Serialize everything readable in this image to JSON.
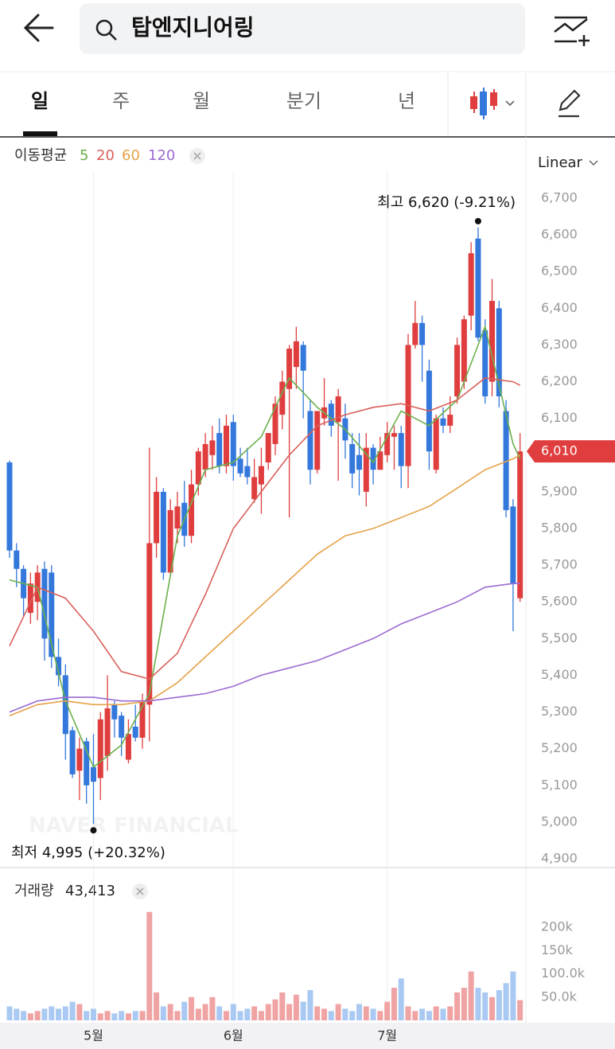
{
  "header": {
    "search": "탑엔지니어링"
  },
  "tabs": [
    "일",
    "주",
    "월",
    "분기",
    "년"
  ],
  "chart_data": {
    "type": "candlestick",
    "ma_title": "이동평균",
    "scale_label": "Linear",
    "watermark": "NAVER FINANCIAL",
    "ylim": [
      4900,
      6700
    ],
    "yticks": [
      {
        "value": 4900,
        "label": "4,900"
      },
      {
        "value": 5000,
        "label": "5,000"
      },
      {
        "value": 5100,
        "label": "5,100"
      },
      {
        "value": 5200,
        "label": "5,200"
      },
      {
        "value": 5300,
        "label": "5,300"
      },
      {
        "value": 5400,
        "label": "5,400"
      },
      {
        "value": 5500,
        "label": "5,500"
      },
      {
        "value": 5600,
        "label": "5,600"
      },
      {
        "value": 5700,
        "label": "5,700"
      },
      {
        "value": 5800,
        "label": "5,800"
      },
      {
        "value": 5900,
        "label": "5,900"
      },
      {
        "value": 6000,
        "label": "6,000"
      },
      {
        "value": 6100,
        "label": "6,100"
      },
      {
        "value": 6200,
        "label": "6,200"
      },
      {
        "value": 6300,
        "label": "6,300"
      },
      {
        "value": 6400,
        "label": "6,400"
      },
      {
        "value": 6500,
        "label": "6,500"
      },
      {
        "value": 6600,
        "label": "6,600"
      },
      {
        "value": 6700,
        "label": "6,700"
      }
    ],
    "x_labels": [
      {
        "value": 12,
        "label": "5월"
      },
      {
        "value": 32,
        "label": "6월"
      },
      {
        "value": 54,
        "label": "7월"
      }
    ],
    "up_color": "#e03e3e",
    "down_color": "#3478dc",
    "up_volume_color": "#f0a3a3",
    "down_volume_color": "#a9c9f2",
    "candles": [
      [
        5980,
        5985,
        5720,
        5740
      ],
      [
        5740,
        5760,
        5640,
        5690
      ],
      [
        5690,
        5700,
        5560,
        5610
      ],
      [
        5570,
        5680,
        5540,
        5650
      ],
      [
        5600,
        5700,
        5550,
        5680
      ],
      [
        5690,
        5710,
        5440,
        5500
      ],
      [
        5680,
        5700,
        5420,
        5450
      ],
      [
        5450,
        5500,
        5370,
        5400
      ],
      [
        5400,
        5430,
        5170,
        5240
      ],
      [
        5250,
        5260,
        5120,
        5130
      ],
      [
        5140,
        5230,
        5060,
        5200
      ],
      [
        5220,
        5230,
        5050,
        5100
      ],
      [
        5150,
        5240,
        4995,
        5110
      ],
      [
        5120,
        5300,
        5060,
        5280
      ],
      [
        5180,
        5400,
        5140,
        5310
      ],
      [
        5320,
        5330,
        5230,
        5280
      ],
      [
        5290,
        5300,
        5180,
        5230
      ],
      [
        5170,
        5280,
        5160,
        5240
      ],
      [
        5260,
        5320,
        5220,
        5230
      ],
      [
        5230,
        5350,
        5200,
        5330
      ],
      [
        5320,
        6020,
        5220,
        5760
      ],
      [
        5760,
        5940,
        5720,
        5900
      ],
      [
        5900,
        5910,
        5660,
        5680
      ],
      [
        5680,
        5880,
        5670,
        5850
      ],
      [
        5800,
        5900,
        5760,
        5860
      ],
      [
        5870,
        5930,
        5750,
        5780
      ],
      [
        5780,
        5960,
        5760,
        5920
      ],
      [
        5920,
        6020,
        5890,
        6010
      ],
      [
        5960,
        6060,
        5940,
        6030
      ],
      [
        6000,
        6080,
        5960,
        6040
      ],
      [
        6060,
        6100,
        5950,
        5970
      ],
      [
        5970,
        6110,
        5950,
        6080
      ],
      [
        6090,
        6110,
        5930,
        5970
      ],
      [
        5990,
        6020,
        5940,
        5950
      ],
      [
        5970,
        6020,
        5920,
        5940
      ],
      [
        5880,
        5990,
        5870,
        5940
      ],
      [
        5920,
        6020,
        5840,
        5970
      ],
      [
        5980,
        6060,
        5960,
        6060
      ],
      [
        6030,
        6160,
        6000,
        6140
      ],
      [
        6110,
        6230,
        6070,
        6200
      ],
      [
        6180,
        6300,
        5830,
        6290
      ],
      [
        6240,
        6350,
        6180,
        6310
      ],
      [
        6300,
        6310,
        6100,
        6230
      ],
      [
        6120,
        6150,
        5920,
        5960
      ],
      [
        5960,
        6120,
        5950,
        6120
      ],
      [
        6100,
        6210,
        6080,
        6130
      ],
      [
        6140,
        6150,
        6050,
        6080
      ],
      [
        6090,
        6180,
        5930,
        6160
      ],
      [
        6100,
        6140,
        5990,
        6040
      ],
      [
        6030,
        6060,
        5910,
        5950
      ],
      [
        6000,
        6060,
        5890,
        5960
      ],
      [
        5900,
        6060,
        5860,
        6020
      ],
      [
        6020,
        6030,
        5920,
        5960
      ],
      [
        5960,
        6050,
        5960,
        6010
      ],
      [
        6000,
        6090,
        5980,
        6060
      ],
      [
        6050,
        6080,
        5960,
        6060
      ],
      [
        6060,
        6080,
        5910,
        5970
      ],
      [
        5970,
        6330,
        5910,
        6300
      ],
      [
        6300,
        6420,
        6290,
        6360
      ],
      [
        6360,
        6380,
        6200,
        6300
      ],
      [
        6230,
        6260,
        5960,
        6010
      ],
      [
        5960,
        6110,
        5950,
        6100
      ],
      [
        6100,
        6130,
        6060,
        6080
      ],
      [
        6080,
        6160,
        6060,
        6110
      ],
      [
        6160,
        6320,
        6140,
        6300
      ],
      [
        6200,
        6380,
        6180,
        6370
      ],
      [
        6380,
        6580,
        6340,
        6550
      ],
      [
        6590,
        6620,
        6310,
        6320
      ],
      [
        6340,
        6370,
        6140,
        6160
      ],
      [
        6200,
        6480,
        6160,
        6420
      ],
      [
        6400,
        6420,
        6130,
        6160
      ],
      [
        6120,
        6150,
        5830,
        5850
      ],
      [
        5860,
        5880,
        5520,
        5650
      ],
      [
        5610,
        6060,
        5600,
        6010
      ]
    ],
    "series": [
      {
        "name": "5",
        "color": "#6ab04c",
        "x": [
          0,
          4,
          8,
          12,
          16,
          20,
          24,
          28,
          32,
          36,
          40,
          44,
          48,
          52,
          56,
          60,
          64,
          68,
          72,
          73
        ],
        "values": [
          5660,
          5640,
          5330,
          5150,
          5210,
          5350,
          5780,
          5960,
          5980,
          6050,
          6210,
          6130,
          6070,
          5980,
          6120,
          6080,
          6150,
          6350,
          6030,
          5990
        ]
      },
      {
        "name": "20",
        "color": "#d9605a",
        "x": [
          0,
          4,
          8,
          12,
          16,
          20,
          24,
          28,
          32,
          36,
          40,
          44,
          48,
          52,
          56,
          60,
          64,
          68,
          72,
          73
        ],
        "values": [
          5480,
          5640,
          5610,
          5520,
          5410,
          5390,
          5460,
          5620,
          5800,
          5900,
          6000,
          6080,
          6110,
          6130,
          6140,
          6120,
          6150,
          6210,
          6200,
          6190
        ]
      },
      {
        "name": "60",
        "color": "#e5a24a",
        "x": [
          0,
          4,
          8,
          12,
          16,
          20,
          24,
          28,
          32,
          36,
          40,
          44,
          48,
          52,
          56,
          60,
          64,
          68,
          72,
          73
        ],
        "values": [
          5290,
          5320,
          5330,
          5320,
          5320,
          5330,
          5380,
          5450,
          5520,
          5590,
          5660,
          5730,
          5780,
          5800,
          5830,
          5860,
          5910,
          5960,
          5990,
          6000
        ]
      },
      {
        "name": "120",
        "color": "#9b6bd1",
        "x": [
          0,
          4,
          8,
          12,
          16,
          20,
          24,
          28,
          32,
          36,
          40,
          44,
          48,
          52,
          56,
          60,
          64,
          68,
          72,
          73
        ],
        "values": [
          5300,
          5330,
          5340,
          5340,
          5330,
          5330,
          5340,
          5350,
          5370,
          5400,
          5420,
          5440,
          5470,
          5500,
          5540,
          5570,
          5600,
          5640,
          5650,
          5650
        ]
      }
    ],
    "annotations": [
      {
        "label": "최고 6,620 (-9.21%)",
        "index": 67,
        "value": 6620
      },
      {
        "label": "최저 4,995 (+20.32%)",
        "index": 12,
        "value": 4995
      }
    ],
    "current": {
      "value": 6010,
      "label": "6,010"
    },
    "volume_title": "거래량",
    "volume_current_label": "43,413",
    "volumes": [
      30000,
      25000,
      20000,
      15000,
      20000,
      25000,
      30000,
      25000,
      30000,
      40000,
      35000,
      20000,
      25000,
      15000,
      20000,
      15000,
      20000,
      15000,
      20000,
      20000,
      233000,
      60000,
      30000,
      35000,
      20000,
      40000,
      50000,
      25000,
      35000,
      50000,
      30000,
      20000,
      35000,
      20000,
      25000,
      30000,
      20000,
      35000,
      45000,
      60000,
      35000,
      55000,
      40000,
      65000,
      30000,
      25000,
      20000,
      35000,
      25000,
      20000,
      35000,
      30000,
      25000,
      20000,
      40000,
      70000,
      90000,
      30000,
      20000,
      25000,
      20000,
      30000,
      25000,
      30000,
      60000,
      70000,
      105000,
      70000,
      60000,
      50000,
      65000,
      80000,
      105000,
      43413
    ],
    "volume_ylim": [
      0,
      260000
    ],
    "volume_ticks": [
      {
        "value": 50000,
        "label": "50.0k"
      },
      {
        "value": 100000,
        "label": "100.0k"
      },
      {
        "value": 150000,
        "label": "150k"
      },
      {
        "value": 200000,
        "label": "200k"
      }
    ]
  }
}
